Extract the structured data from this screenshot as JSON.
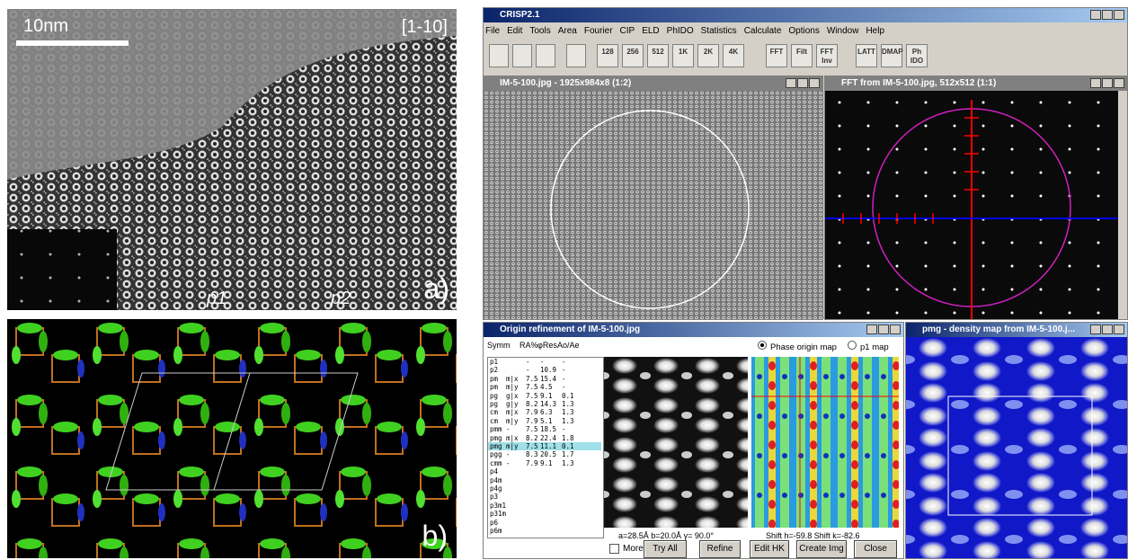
{
  "panel_a": {
    "scale_bar": "10nm",
    "zone_axis": "[1-10]",
    "label": "a)",
    "region_1": "p1",
    "region_2": "p2"
  },
  "panel_b": {
    "label": "b)"
  },
  "app": {
    "title": "CRISP2.1",
    "menu": [
      "File",
      "Edit",
      "Tools",
      "Area",
      "Fourier",
      "CIP",
      "ELD",
      "PhIDO",
      "Statistics",
      "Calculate",
      "Options",
      "Window",
      "Help"
    ],
    "toolbar": [
      "128",
      "256",
      "512",
      "1K",
      "2K",
      "4K",
      "FFT",
      "Filt",
      "FFT Inv",
      "LATT",
      "DMAP",
      "Ph IDO"
    ],
    "image_window": {
      "title": "IM-5-100.jpg - 1925x984x8 (1:2)"
    },
    "fft_window": {
      "title": "FFT from IM-5-100.jpg, 512x512 (1:1)"
    },
    "origin_window": {
      "title": "Origin refinement of IM-5-100.jpg",
      "columns": [
        "Symm",
        "RA%",
        "φRes",
        "Ao/Ae"
      ],
      "rows": [
        [
          "p1",
          "-",
          "-",
          "-"
        ],
        [
          "p2",
          "-",
          10.9,
          "-"
        ],
        [
          "pm",
          "m|x",
          7.5,
          15.4,
          "-"
        ],
        [
          "pm",
          "m|y",
          7.5,
          4.5,
          "-"
        ],
        [
          "pg",
          "g|x",
          7.5,
          9.1,
          0.1
        ],
        [
          "pg",
          "g|y",
          8.2,
          14.3,
          1.3
        ],
        [
          "cm",
          "m|x",
          7.9,
          6.3,
          1.3
        ],
        [
          "cm",
          "m|y",
          7.9,
          5.1,
          1.3
        ],
        [
          "pmm",
          "-",
          7.5,
          18.5,
          "-"
        ],
        [
          "pmg",
          "m|x",
          8.2,
          22.4,
          1.8
        ],
        [
          "pmg",
          "m|y",
          7.5,
          11.1,
          0.1
        ],
        [
          "pgg",
          "-",
          8.3,
          20.5,
          1.7
        ],
        [
          "cmm",
          "-",
          7.9,
          9.1,
          1.3
        ],
        [
          "p4"
        ],
        [
          "p4m"
        ],
        [
          "p4g"
        ],
        [
          "p3"
        ],
        [
          "p3m1"
        ],
        [
          "p31m"
        ],
        [
          "p6"
        ],
        [
          "p6m"
        ]
      ],
      "selected_row": 10,
      "options": [
        "Phase origin map",
        "p1 map"
      ],
      "cell": "a=28.5Å  b=20.0Å  γ= 90.0°",
      "shift": "Shift h=-59.8  Shift k=-82.6",
      "checkbox": "More",
      "buttons": [
        "Try All",
        "Refine",
        "Edit HK",
        "Create Img",
        "Close"
      ]
    },
    "density_window": {
      "title": "pmg - density map from IM-5-100.j..."
    }
  }
}
